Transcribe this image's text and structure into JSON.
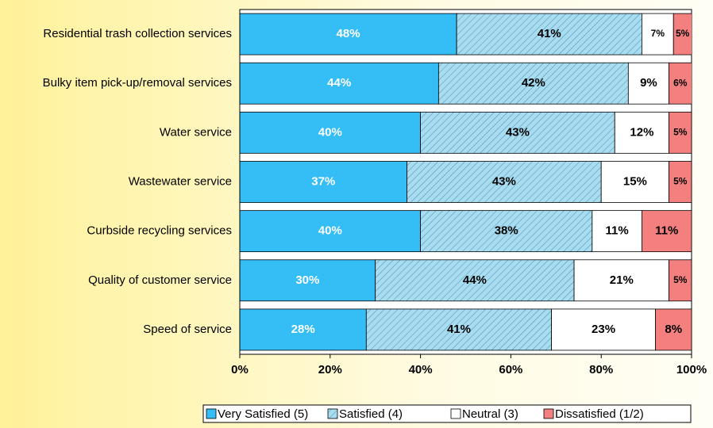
{
  "chart_data": {
    "type": "stacked-bar-horizontal",
    "categories": [
      "Residential trash collection services",
      "Bulky item pick-up/removal services",
      "Water service",
      "Wastewater service",
      "Curbside recycling services",
      "Quality of customer service",
      "Speed of service"
    ],
    "series": [
      {
        "name": "Very Satisfied (5)",
        "color": "#35bdf6",
        "values": [
          48,
          44,
          40,
          37,
          40,
          30,
          28
        ],
        "value_labels": [
          "48%",
          "44%",
          "40%",
          "37%",
          "40%",
          "30%",
          "28%"
        ]
      },
      {
        "name": "Satisfied (4)",
        "color": "#a9dcef",
        "pattern": "hatch",
        "values": [
          41,
          42,
          43,
          43,
          38,
          44,
          41
        ],
        "value_labels": [
          "41%",
          "42%",
          "43%",
          "43%",
          "38%",
          "44%",
          "41%"
        ]
      },
      {
        "name": "Neutral (3)",
        "color": "#ffffff",
        "values": [
          7,
          9,
          12,
          15,
          11,
          21,
          23
        ],
        "value_labels": [
          "7%",
          "9%",
          "12%",
          "15%",
          "11%",
          "21%",
          "23%"
        ]
      },
      {
        "name": "Dissatisfied (1/2)",
        "color": "#f47f7f",
        "values": [
          5,
          6,
          5,
          5,
          11,
          5,
          8
        ],
        "value_labels": [
          "5%",
          "6%",
          "5%",
          "5%",
          "11%",
          "5%",
          "8%"
        ]
      }
    ],
    "xlim": [
      0,
      100
    ],
    "xticks": [
      {
        "value": 0,
        "label": "0%"
      },
      {
        "value": 20,
        "label": "20%"
      },
      {
        "value": 40,
        "label": "40%"
      },
      {
        "value": 60,
        "label": "60%"
      },
      {
        "value": 80,
        "label": "80%"
      },
      {
        "value": 100,
        "label": "100%"
      }
    ],
    "legend": "bottom"
  }
}
